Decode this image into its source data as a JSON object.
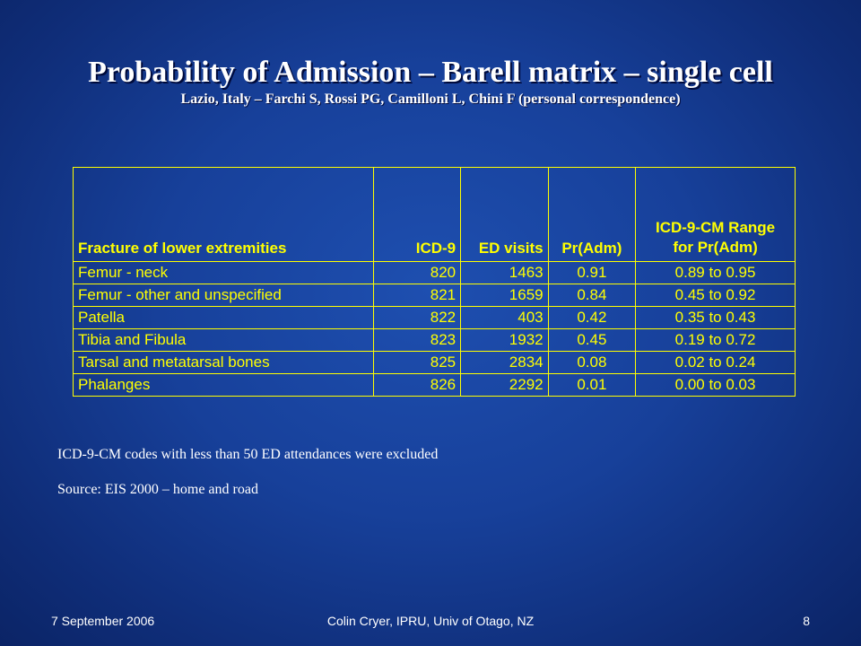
{
  "slide": {
    "title": "Probability of Admission – Barell matrix – single cell",
    "subtitle": "Lazio, Italy – Farchi S, Rossi PG, Camilloni L, Chini F (personal correspondence)"
  },
  "table": {
    "headers": [
      "Fracture of lower extremities",
      "ICD-9",
      "ED visits",
      "Pr(Adm)",
      "ICD-9-CM Range",
      "for Pr(Adm)"
    ],
    "rows": [
      [
        "Femur - neck",
        "820",
        "1463",
        "0.91",
        "0.89 to 0.95"
      ],
      [
        "Femur - other and unspecified",
        "821",
        "1659",
        "0.84",
        "0.45 to 0.92"
      ],
      [
        "Patella",
        "822",
        "403",
        "0.42",
        "0.35 to 0.43"
      ],
      [
        "Tibia and Fibula",
        "823",
        "1932",
        "0.45",
        "0.19 to 0.72"
      ],
      [
        "Tarsal and metatarsal bones",
        "825",
        "2834",
        "0.08",
        "0.02 to 0.24"
      ],
      [
        "Phalanges",
        "826",
        "2292",
        "0.01",
        "0.00 to 0.03"
      ]
    ]
  },
  "notes": {
    "exclusion": "ICD-9-CM codes with less than 50 ED attendances were excluded",
    "source": "Source: EIS 2000 – home and road"
  },
  "footer": {
    "date": "7 September 2006",
    "author": "Colin Cryer, IPRU, Univ of Otago, NZ",
    "page": "8"
  },
  "colors": {
    "table_text": "#ffff00",
    "background": "#17409a"
  }
}
